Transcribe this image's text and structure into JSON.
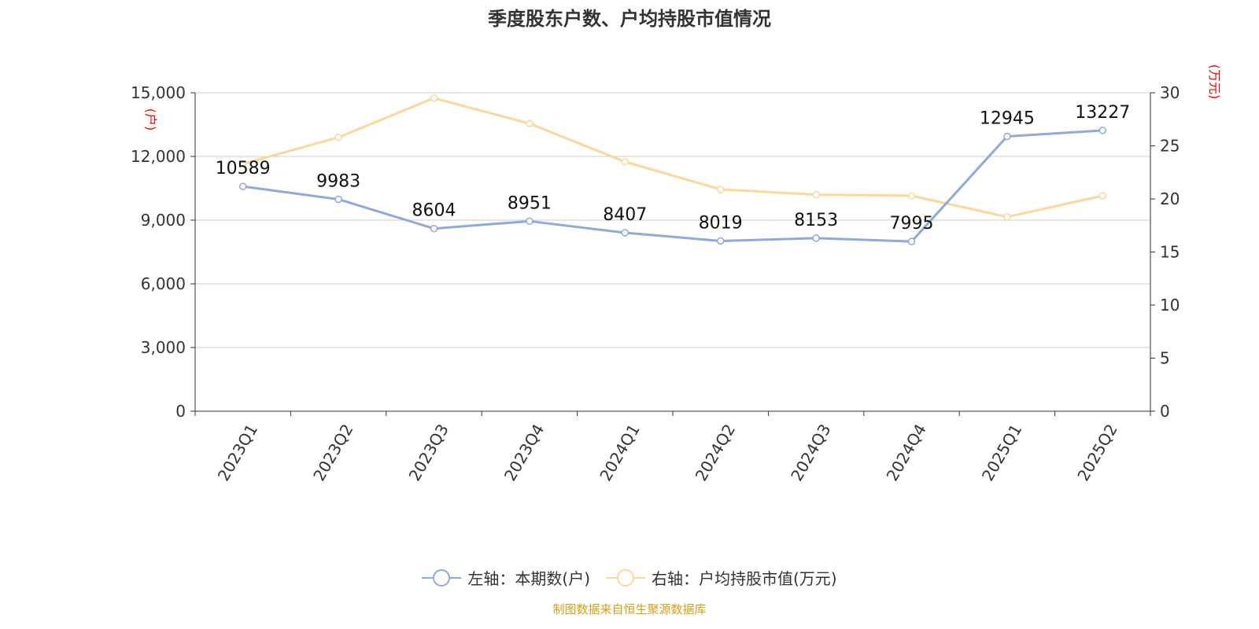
{
  "title": "季度股东户数、户均持股市值情况",
  "source": "制图数据来自恒生聚源数据库",
  "legend": {
    "left_series": "左轴：本期数(户)",
    "right_series": "右轴：户均持股市值(万元)"
  },
  "colors": {
    "left_series": "#8eaadb",
    "right_series": "#fcd898",
    "unit_text": "#ff0000",
    "source_text": "#d4a017",
    "grid": "#cccccc",
    "axis": "#333333"
  },
  "chart_data": {
    "type": "line",
    "title": "季度股东户数、户均持股市值情况",
    "categories": [
      "2023Q1",
      "2023Q2",
      "2023Q3",
      "2023Q4",
      "2024Q1",
      "2024Q2",
      "2024Q3",
      "2024Q4",
      "2025Q1",
      "2025Q2"
    ],
    "left_axis": {
      "unit": "(户)",
      "ylim": [
        0,
        15000
      ],
      "ticks": [
        0,
        3000,
        6000,
        9000,
        12000,
        15000
      ],
      "tick_labels": [
        "0",
        "3,000",
        "6,000",
        "9,000",
        "12,000",
        "15,000"
      ]
    },
    "right_axis": {
      "unit": "(万元)",
      "ylim": [
        0,
        30
      ],
      "ticks": [
        0,
        5,
        10,
        15,
        20,
        25,
        30
      ],
      "tick_labels": [
        "0",
        "5",
        "10",
        "15",
        "20",
        "25",
        "30"
      ]
    },
    "grid": true,
    "legend_position": "bottom",
    "series": [
      {
        "name": "左轴：本期数(户)",
        "axis": "left",
        "values": [
          10589,
          9983,
          8604,
          8951,
          8407,
          8019,
          8153,
          7995,
          12945,
          13227
        ],
        "labels": [
          "10589",
          "9983",
          "8604",
          "8951",
          "8407",
          "8019",
          "8153",
          "7995",
          "12945",
          "13227"
        ]
      },
      {
        "name": "右轴：户均持股市值(万元)",
        "axis": "right",
        "values": [
          23.3,
          25.8,
          29.5,
          27.1,
          23.5,
          20.9,
          20.4,
          20.3,
          18.3,
          20.3
        ]
      }
    ]
  }
}
